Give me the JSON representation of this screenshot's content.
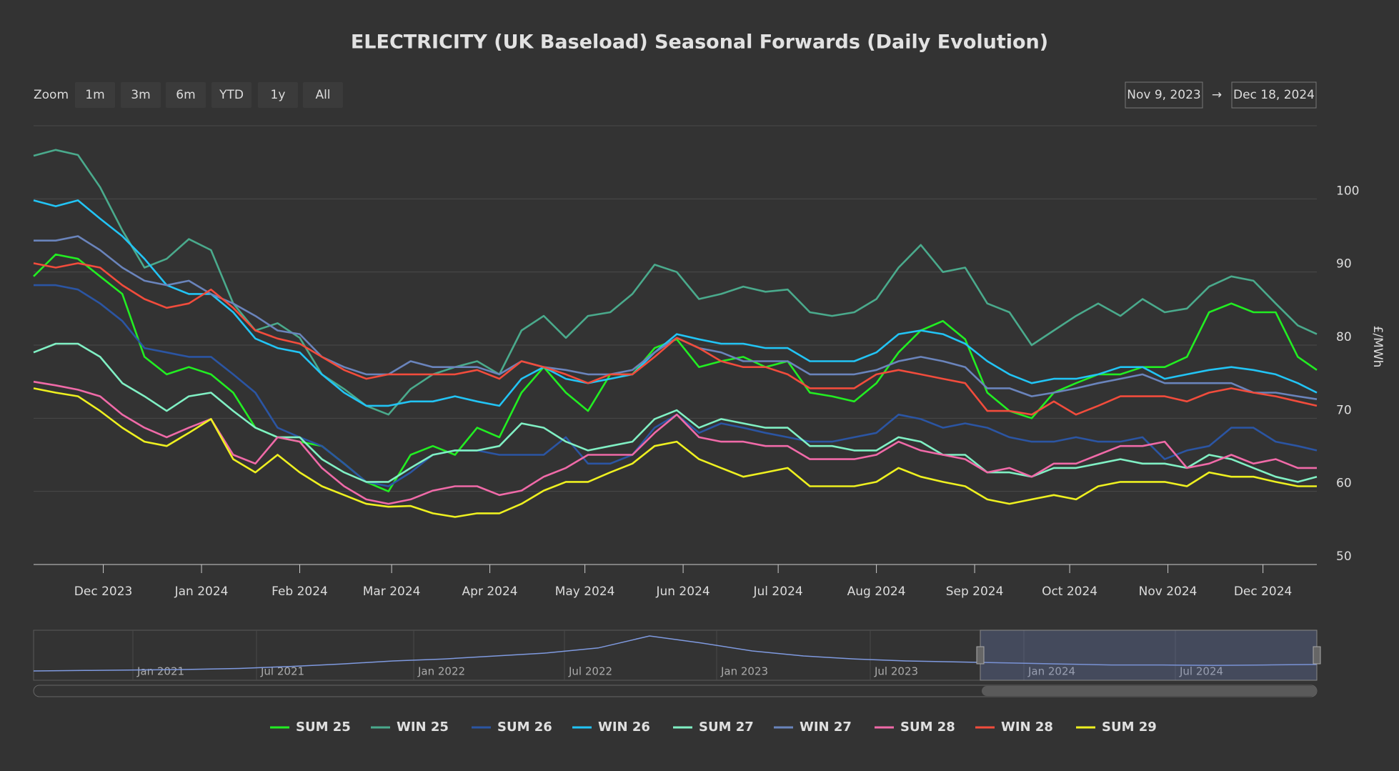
{
  "chart_data": {
    "type": "line",
    "title": "ELECTRICITY (UK Baseload) Seasonal Forwards (Daily Evolution)",
    "y_label": "£/MWh",
    "x": [
      "2023-11-09",
      "2023-11-16",
      "2023-11-23",
      "2023-11-30",
      "2023-12-07",
      "2023-12-14",
      "2023-12-21",
      "2023-12-28",
      "2024-01-04",
      "2024-01-11",
      "2024-01-18",
      "2024-01-25",
      "2024-02-01",
      "2024-02-08",
      "2024-02-15",
      "2024-02-22",
      "2024-02-29",
      "2024-03-07",
      "2024-03-14",
      "2024-03-21",
      "2024-03-28",
      "2024-04-04",
      "2024-04-11",
      "2024-04-18",
      "2024-04-25",
      "2024-05-02",
      "2024-05-09",
      "2024-05-16",
      "2024-05-23",
      "2024-05-30",
      "2024-06-06",
      "2024-06-13",
      "2024-06-20",
      "2024-06-27",
      "2024-07-04",
      "2024-07-11",
      "2024-07-18",
      "2024-07-25",
      "2024-08-01",
      "2024-08-08",
      "2024-08-15",
      "2024-08-22",
      "2024-08-29",
      "2024-09-05",
      "2024-09-12",
      "2024-09-19",
      "2024-09-26",
      "2024-10-03",
      "2024-10-10",
      "2024-10-17",
      "2024-10-24",
      "2024-10-31",
      "2024-11-07",
      "2024-11-14",
      "2024-11-21",
      "2024-11-28",
      "2024-12-05",
      "2024-12-12",
      "2024-12-18"
    ],
    "xlim": [
      "2023-11-09",
      "2024-12-18"
    ],
    "xticks": [
      {
        "value": "2023-12-01",
        "label": "Dec 2023"
      },
      {
        "value": "2024-01-01",
        "label": "Jan 2024"
      },
      {
        "value": "2024-02-01",
        "label": "Feb 2024"
      },
      {
        "value": "2024-03-01",
        "label": "Mar 2024"
      },
      {
        "value": "2024-04-01",
        "label": "Apr 2024"
      },
      {
        "value": "2024-05-01",
        "label": "May 2024"
      },
      {
        "value": "2024-06-01",
        "label": "Jun 2024"
      },
      {
        "value": "2024-07-01",
        "label": "Jul 2024"
      },
      {
        "value": "2024-08-01",
        "label": "Aug 2024"
      },
      {
        "value": "2024-09-01",
        "label": "Sep 2024"
      },
      {
        "value": "2024-10-01",
        "label": "Oct 2024"
      },
      {
        "value": "2024-11-01",
        "label": "Nov 2024"
      },
      {
        "value": "2024-12-01",
        "label": "Dec 2024"
      }
    ],
    "ylim": [
      50,
      110
    ],
    "yticks": [
      50,
      60,
      70,
      80,
      90,
      100
    ],
    "grid": true,
    "legend": "bottom",
    "series": [
      {
        "name": "SUM 25",
        "color": "#22ee22",
        "values": [
          89.4,
          92.4,
          91.8,
          89.4,
          87,
          78.4,
          76,
          77,
          76,
          73.5,
          68.7,
          67.4,
          66.8,
          66.2,
          63.8,
          61.3,
          60,
          65,
          66.2,
          65,
          68.7,
          67.4,
          73.5,
          77,
          73.5,
          71,
          76,
          76,
          79.6,
          80.8,
          77,
          77.8,
          78.4,
          77,
          77.8,
          73.5,
          73,
          72.3,
          74.8,
          79,
          82,
          83.3,
          80.8,
          73.5,
          71,
          70,
          73.5,
          74.8,
          76,
          76,
          77,
          77,
          78.4,
          84.5,
          85.7,
          84.5,
          84.5,
          78.4,
          76.6
        ]
      },
      {
        "name": "WIN 25",
        "color": "#4aaa8c",
        "values": [
          105.9,
          106.7,
          106,
          101.6,
          95.7,
          90.6,
          91.8,
          94.5,
          93,
          85.7,
          82,
          83,
          81,
          76,
          74,
          71.7,
          70.5,
          74,
          76,
          77,
          77.8,
          76,
          82,
          84,
          81,
          84,
          84.5,
          87,
          91,
          90,
          86.3,
          87,
          88,
          87.3,
          87.6,
          84.5,
          84,
          84.5,
          86.3,
          90.6,
          93.7,
          90,
          90.6,
          85.7,
          84.5,
          80,
          82,
          84,
          85.7,
          84,
          86.3,
          84.5,
          85,
          88,
          89.4,
          88.8,
          85.7,
          82.7,
          81.5
        ]
      },
      {
        "name": "SUM 26",
        "color": "#2b55a3",
        "values": [
          88.2,
          88.2,
          87.6,
          85.7,
          83.3,
          79.6,
          79,
          78.4,
          78.4,
          76,
          73.5,
          68.7,
          67.4,
          66.2,
          63.8,
          61.3,
          60.7,
          62.6,
          65,
          65.6,
          65.6,
          65,
          65,
          65,
          67.4,
          63.8,
          63.8,
          65,
          68.7,
          70.5,
          68,
          69.3,
          68.7,
          68,
          67.4,
          66.8,
          66.8,
          67.4,
          68,
          70.5,
          69.9,
          68.7,
          69.3,
          68.7,
          67.4,
          66.8,
          66.8,
          67.4,
          66.8,
          66.8,
          67.4,
          64.4,
          65.6,
          66.2,
          68.7,
          68.7,
          66.8,
          66.2,
          65.6
        ]
      },
      {
        "name": "WIN 26",
        "color": "#22c4f5",
        "values": [
          99.8,
          99,
          99.8,
          97.3,
          94.9,
          91.8,
          88.2,
          87,
          87,
          84.5,
          80.9,
          79.6,
          79,
          76,
          73.5,
          71.7,
          71.7,
          72.3,
          72.3,
          73,
          72.3,
          71.7,
          75.4,
          77,
          75.4,
          74.8,
          75.4,
          76,
          79,
          81.5,
          80.8,
          80.2,
          80.2,
          79.6,
          79.6,
          77.8,
          77.8,
          77.8,
          79,
          81.5,
          82,
          81.5,
          80.2,
          77.8,
          76,
          74.8,
          75.4,
          75.4,
          76,
          77,
          77,
          75.4,
          76,
          76.6,
          77,
          76.6,
          76,
          74.8,
          73.5
        ]
      },
      {
        "name": "SUM 27",
        "color": "#80f0c4",
        "values": [
          79,
          80.2,
          80.2,
          78.4,
          74.8,
          73,
          71,
          73,
          73.5,
          71,
          68.7,
          67.4,
          67.4,
          64.4,
          62.6,
          61.3,
          61.3,
          63.2,
          65,
          65.6,
          65.6,
          66.2,
          69.3,
          68.7,
          66.8,
          65.6,
          66.2,
          66.8,
          69.9,
          71.1,
          68.7,
          69.9,
          69.3,
          68.7,
          68.7,
          66.2,
          66.2,
          65.6,
          65.6,
          67.4,
          66.8,
          65,
          65,
          62.6,
          62.6,
          62,
          63.2,
          63.2,
          63.8,
          64.4,
          63.8,
          63.8,
          63.2,
          65,
          64.4,
          63.2,
          62,
          61.3,
          62
        ]
      },
      {
        "name": "WIN 27",
        "color": "#6a84bc",
        "values": [
          94.3,
          94.3,
          94.9,
          93,
          90.6,
          88.8,
          88.2,
          88.8,
          87,
          85.7,
          84,
          82,
          81.5,
          78.4,
          77,
          76,
          76,
          77.8,
          77,
          77,
          77,
          76,
          77.8,
          77,
          76.6,
          76,
          76,
          76.6,
          79,
          81,
          79.6,
          79,
          77.8,
          77.8,
          77.8,
          76,
          76,
          76,
          76.6,
          77.8,
          78.4,
          77.8,
          77,
          74.1,
          74.1,
          73,
          73.5,
          74.1,
          74.8,
          75.4,
          76,
          74.8,
          74.8,
          74.8,
          74.8,
          73.5,
          73.5,
          73,
          72.6
        ]
      },
      {
        "name": "SUM 28",
        "color": "#f06aa8",
        "values": [
          75,
          74.5,
          73.9,
          73,
          70.5,
          68.7,
          67.4,
          68.7,
          69.9,
          65,
          63.8,
          67.4,
          66.8,
          63.2,
          60.7,
          58.9,
          58.3,
          58.9,
          60.1,
          60.7,
          60.7,
          59.5,
          60.1,
          62,
          63.2,
          65,
          65,
          65,
          68,
          70.5,
          67.4,
          66.8,
          66.8,
          66.2,
          66.2,
          64.4,
          64.4,
          64.4,
          65,
          66.8,
          65.6,
          65,
          64.4,
          62.6,
          63.2,
          62,
          63.8,
          63.8,
          65,
          66.2,
          66.2,
          66.8,
          63.2,
          63.8,
          65,
          63.8,
          64.4,
          63.2,
          63.2
        ]
      },
      {
        "name": "WIN 28",
        "color": "#f24c3c",
        "values": [
          91.2,
          90.6,
          91.2,
          90.6,
          88.2,
          86.3,
          85.1,
          85.7,
          87.6,
          85.1,
          82,
          80.9,
          80.2,
          78.4,
          76.6,
          75.4,
          76,
          76,
          76,
          76,
          76.6,
          75.4,
          77.8,
          77,
          76,
          74.8,
          76,
          76,
          78.4,
          81,
          79.6,
          77.8,
          77,
          77,
          76,
          74.1,
          74.1,
          74.1,
          76,
          76.6,
          76,
          75.4,
          74.8,
          71,
          71,
          70.5,
          72.3,
          70.5,
          71.7,
          73,
          73,
          73,
          72.3,
          73.5,
          74.1,
          73.5,
          73,
          72.3,
          71.7
        ]
      },
      {
        "name": "SUM 29",
        "color": "#eef020",
        "values": [
          74.1,
          73.5,
          73,
          71,
          68.7,
          66.8,
          66.2,
          68,
          69.9,
          64.4,
          62.6,
          65,
          62.6,
          60.7,
          59.5,
          58.3,
          57.9,
          58,
          57,
          56.5,
          57,
          57,
          58.3,
          60.1,
          61.3,
          61.3,
          62.6,
          63.8,
          66.2,
          66.8,
          64.4,
          63.2,
          62,
          62.6,
          63.2,
          60.7,
          60.7,
          60.7,
          61.3,
          63.2,
          62,
          61.3,
          60.7,
          58.9,
          58.3,
          58.9,
          59.5,
          58.9,
          60.7,
          61.3,
          61.3,
          61.3,
          60.7,
          62.6,
          62,
          62,
          61.3,
          60.7,
          60.7
        ]
      }
    ]
  },
  "controls": {
    "zoom_label": "Zoom",
    "zoom_buttons": [
      "1m",
      "3m",
      "6m",
      "YTD",
      "1y",
      "All"
    ],
    "range_from": "Nov 9, 2023",
    "range_arrow": "→",
    "range_to": "Dec 18, 2024"
  },
  "navigator": {
    "labels": [
      "Jan 2021",
      "Jul 2021",
      "Jan 2022",
      "Jul 2022",
      "Jan 2023",
      "Jul 2023",
      "Jan 2024",
      "Jul 2024"
    ],
    "values": [
      50,
      55,
      60,
      65,
      75,
      95,
      120,
      150,
      170,
      200,
      230,
      280,
      400,
      330,
      250,
      200,
      170,
      150,
      140,
      130,
      120,
      110,
      110,
      105,
      110,
      115
    ]
  }
}
